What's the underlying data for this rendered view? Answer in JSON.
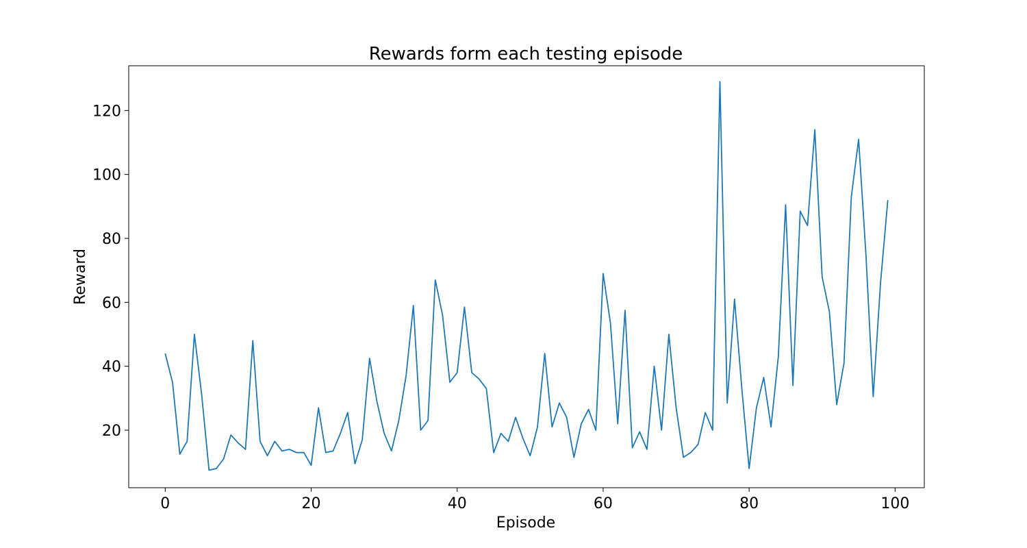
{
  "chart_data": {
    "type": "line",
    "title": "Rewards form each testing episode",
    "xlabel": "Episode",
    "ylabel": "Reward",
    "xlim": [
      -5,
      104
    ],
    "ylim": [
      2,
      134
    ],
    "xticks": [
      0,
      20,
      40,
      60,
      80,
      100
    ],
    "yticks": [
      20,
      40,
      60,
      80,
      100,
      120
    ],
    "grid": false,
    "legend": "none",
    "color": "#1f77b4",
    "x": [
      0,
      1,
      2,
      3,
      4,
      5,
      6,
      7,
      8,
      9,
      10,
      11,
      12,
      13,
      14,
      15,
      16,
      17,
      18,
      19,
      20,
      21,
      22,
      23,
      24,
      25,
      26,
      27,
      28,
      29,
      30,
      31,
      32,
      33,
      34,
      35,
      36,
      37,
      38,
      39,
      40,
      41,
      42,
      43,
      44,
      45,
      46,
      47,
      48,
      49,
      50,
      51,
      52,
      53,
      54,
      55,
      56,
      57,
      58,
      59,
      60,
      61,
      62,
      63,
      64,
      65,
      66,
      67,
      68,
      69,
      70,
      71,
      72,
      73,
      74,
      75,
      76,
      77,
      78,
      79,
      80,
      81,
      82,
      83,
      84,
      85,
      86,
      87,
      88,
      89,
      90,
      91,
      92,
      93,
      94,
      95,
      96,
      97,
      98,
      99
    ],
    "y": [
      44,
      35,
      12.5,
      16.5,
      50,
      31,
      7.5,
      8,
      11,
      18.5,
      16,
      14,
      48,
      16.5,
      12,
      16.5,
      13.5,
      14,
      13,
      13,
      9,
      27,
      13,
      13.5,
      19,
      25.5,
      9.5,
      17,
      42.5,
      29,
      19,
      13.5,
      23,
      37,
      59,
      20,
      23,
      67,
      56,
      35,
      38,
      58.5,
      38,
      36,
      33,
      13,
      19,
      16.5,
      24,
      17.5,
      12,
      21,
      44,
      21,
      28.5,
      24,
      11.5,
      22,
      26.5,
      20,
      69,
      53.5,
      22,
      57.5,
      14.5,
      19.5,
      14,
      40,
      20,
      50,
      27,
      11.5,
      13,
      15.5,
      25.5,
      20,
      129,
      28.5,
      61,
      33,
      8,
      27,
      36.5,
      21,
      43,
      90.5,
      34,
      88.5,
      84,
      114,
      68,
      57,
      28,
      41,
      93,
      111,
      75,
      30.5,
      66,
      92
    ]
  }
}
